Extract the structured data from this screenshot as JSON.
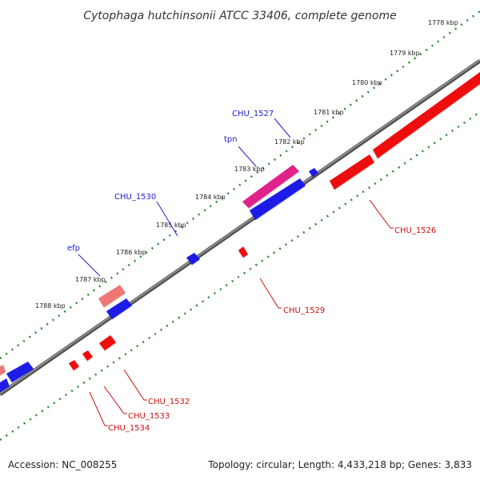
{
  "title": "Cytophaga hutchinsonii ATCC 33406, complete genome",
  "footer": {
    "accession": "Accession: NC_008255",
    "topology": "Topology: circular; Length: 4,433,218 bp; Genes: 3,833"
  },
  "colors": {
    "backbone": "#777777",
    "tick": "#2a8a2a",
    "forward_gene": "#1a1ae6",
    "reverse_gene": "#ee1111",
    "rna_gene": "#e0208a",
    "pseudo_gene": "#ee7777",
    "label_blue": "#1f22cc",
    "label_red": "#cc1111"
  },
  "scale_labels": [
    "1778 kbp",
    "1779 kbp",
    "1780 kbp",
    "1781 kbp",
    "1782 kbp",
    "1783 kbp",
    "1784 kbp",
    "1785 kbp",
    "1786 kbp",
    "1787 kbp",
    "1788 kbp"
  ],
  "genes": [
    {
      "label": "CHU_1527",
      "strand": "forward",
      "kind": "rna"
    },
    {
      "label": "tpn",
      "strand": "forward",
      "kind": "cds"
    },
    {
      "label": "CHU_1530",
      "strand": "forward",
      "kind": "cds"
    },
    {
      "label": "efp",
      "strand": "forward",
      "kind": "pseudo"
    },
    {
      "label": "CHU_1526",
      "strand": "reverse",
      "kind": "cds"
    },
    {
      "label": "CHU_1529",
      "strand": "reverse",
      "kind": "cds"
    },
    {
      "label": "CHU_1532",
      "strand": "reverse",
      "kind": "cds"
    },
    {
      "label": "CHU_1533",
      "strand": "reverse",
      "kind": "cds"
    },
    {
      "label": "CHU_1534",
      "strand": "reverse",
      "kind": "cds"
    }
  ]
}
